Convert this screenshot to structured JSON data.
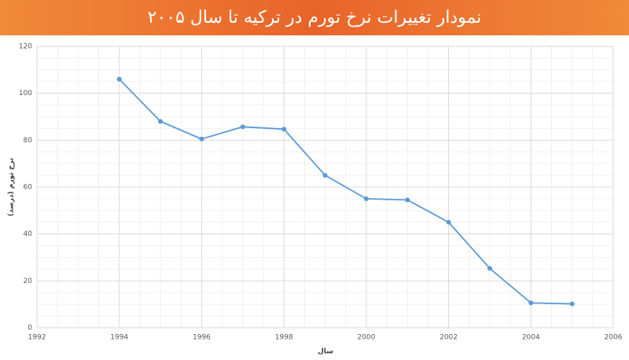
{
  "chart_data": {
    "type": "line",
    "title": "نمودار تغییرات نرخ تورم در ترکیه تا سال ۲۰۰۵",
    "x_label": "سال",
    "y_label": "نرخ تورم (درصد)",
    "x": [
      1994,
      1995,
      1996,
      1997,
      1998,
      1999,
      2000,
      2001,
      2002,
      2003,
      2004,
      2005
    ],
    "series": [
      {
        "color": "#5b9bd5",
        "values": [
          106,
          88,
          80.5,
          85.7,
          84.7,
          65,
          55,
          54.5,
          45,
          25.3,
          10.6,
          10.2
        ]
      }
    ],
    "xlim": [
      1992,
      2006
    ],
    "xticks": [
      1992,
      1994,
      1996,
      1998,
      2000,
      2002,
      2004,
      2006
    ],
    "ylim": [
      0,
      120
    ],
    "yticks": [
      0,
      20,
      40,
      60,
      80,
      100,
      120
    ],
    "grid": true,
    "minor_grid": true
  }
}
